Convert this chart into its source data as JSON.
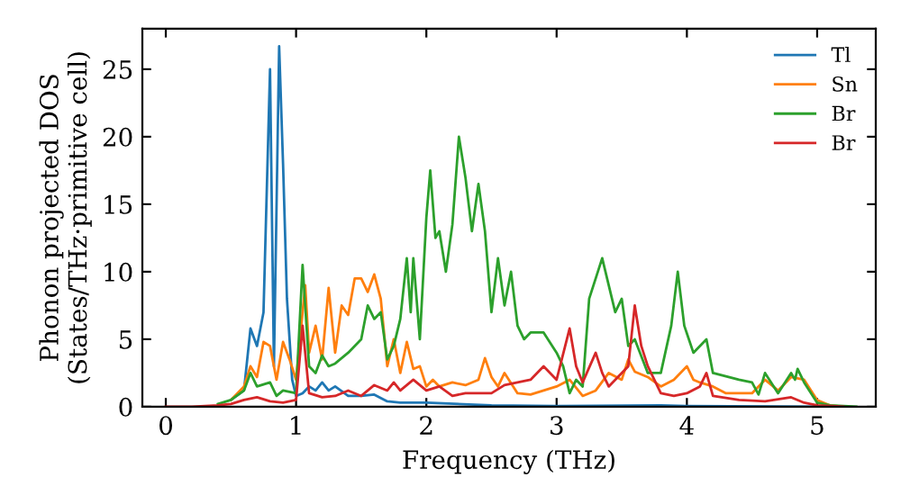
{
  "chart_data": {
    "type": "line",
    "xlabel": "Frequency (THz)",
    "ylabel": "Phonon projected DOS\n(States/THz·primitive cell)",
    "xlim": [
      -0.18,
      5.45
    ],
    "ylim": [
      0,
      28
    ],
    "xticks": [
      0,
      1,
      2,
      3,
      4,
      5
    ],
    "yticks": [
      0,
      5,
      10,
      15,
      20,
      25
    ],
    "grid": false,
    "legend": "top right",
    "marker": "none",
    "line_style": "solid",
    "series": [
      {
        "name": "Tl",
        "color": "#1f77b4",
        "x": [
          0.5,
          0.6,
          0.65,
          0.7,
          0.75,
          0.8,
          0.83,
          0.87,
          0.9,
          0.93,
          0.97,
          1.0,
          1.05,
          1.1,
          1.15,
          1.2,
          1.25,
          1.3,
          1.4,
          1.5,
          1.6,
          1.7,
          1.8,
          2.0,
          2.5,
          3.0,
          3.8,
          4.0,
          5.0
        ],
        "values": [
          0.5,
          1.2,
          5.8,
          4.5,
          7,
          25,
          3,
          26.7,
          18,
          8,
          2,
          0.8,
          1,
          1.5,
          1.2,
          1.8,
          1.2,
          1.5,
          0.8,
          0.8,
          0.9,
          0.4,
          0.3,
          0.3,
          0.1,
          0.05,
          0.1,
          0.05,
          0
        ]
      },
      {
        "name": "Sn",
        "color": "#ff7f0e",
        "x": [
          0.5,
          0.6,
          0.65,
          0.7,
          0.75,
          0.8,
          0.85,
          0.9,
          0.95,
          1.0,
          1.07,
          1.1,
          1.15,
          1.2,
          1.25,
          1.3,
          1.35,
          1.4,
          1.45,
          1.5,
          1.55,
          1.6,
          1.65,
          1.7,
          1.75,
          1.8,
          1.85,
          1.9,
          1.95,
          2.0,
          2.05,
          2.1,
          2.2,
          2.3,
          2.4,
          2.45,
          2.5,
          2.55,
          2.6,
          2.7,
          2.8,
          2.9,
          3.0,
          3.1,
          3.2,
          3.3,
          3.4,
          3.5,
          3.55,
          3.6,
          3.7,
          3.8,
          3.9,
          4.0,
          4.05,
          4.1,
          4.2,
          4.3,
          4.5,
          4.6,
          4.7,
          4.8,
          4.9,
          5.0,
          5.1,
          5.2
        ],
        "values": [
          0.5,
          1.5,
          3,
          2.2,
          4.8,
          4.5,
          2,
          4.8,
          3.5,
          2,
          9,
          4,
          6,
          3.5,
          8.8,
          4,
          7.5,
          6.8,
          9.5,
          9.5,
          8.5,
          9.8,
          8,
          3,
          5,
          2.5,
          4.8,
          2.8,
          3,
          1.5,
          2,
          1.5,
          1.8,
          1.6,
          2,
          3.6,
          2.2,
          1.5,
          2.5,
          1,
          0.9,
          1.2,
          1.5,
          2,
          0.8,
          1.2,
          2.5,
          2,
          3.5,
          2.6,
          2.2,
          1.5,
          2,
          3,
          2,
          1.8,
          1.5,
          1,
          1,
          2,
          1.2,
          2.2,
          2,
          0.5,
          0.1,
          0
        ]
      },
      {
        "name": "Br",
        "color": "#2ca02c",
        "x": [
          0.4,
          0.5,
          0.6,
          0.65,
          0.7,
          0.8,
          0.85,
          0.9,
          1.0,
          1.05,
          1.1,
          1.15,
          1.2,
          1.25,
          1.3,
          1.4,
          1.5,
          1.55,
          1.6,
          1.65,
          1.7,
          1.75,
          1.8,
          1.85,
          1.88,
          1.9,
          1.95,
          2.0,
          2.03,
          2.07,
          2.1,
          2.15,
          2.2,
          2.25,
          2.3,
          2.35,
          2.4,
          2.45,
          2.5,
          2.55,
          2.6,
          2.65,
          2.7,
          2.75,
          2.8,
          2.9,
          3.0,
          3.05,
          3.1,
          3.15,
          3.2,
          3.25,
          3.35,
          3.4,
          3.45,
          3.5,
          3.55,
          3.6,
          3.7,
          3.8,
          3.88,
          3.93,
          3.98,
          4.05,
          4.1,
          4.15,
          4.2,
          4.4,
          4.5,
          4.55,
          4.6,
          4.7,
          4.8,
          4.83,
          4.85,
          4.9,
          5.0,
          5.1,
          5.3
        ],
        "values": [
          0.2,
          0.5,
          1.2,
          2.5,
          1.5,
          1.8,
          0.8,
          1.2,
          1,
          10.5,
          3,
          2.5,
          3.8,
          3,
          3.2,
          4,
          5,
          7.5,
          6.5,
          7,
          3.5,
          4.5,
          6.5,
          11,
          7,
          11,
          5,
          14,
          17.5,
          12.5,
          13,
          10,
          13.5,
          20,
          17,
          13,
          16.5,
          13,
          7,
          11,
          7.5,
          10,
          6,
          5,
          5.5,
          5.5,
          4,
          3,
          1,
          2,
          1.5,
          8,
          11,
          9,
          7,
          8,
          4.5,
          5,
          2.5,
          2.5,
          6,
          10,
          6,
          4,
          4.5,
          5,
          2.5,
          2,
          1.8,
          0.9,
          2.5,
          1,
          2.5,
          2,
          2.8,
          1.8,
          0.3,
          0.1,
          0
        ]
      },
      {
        "name": "Br",
        "color": "#d62728",
        "x": [
          0,
          0.2,
          0.4,
          0.5,
          0.6,
          0.7,
          0.8,
          0.9,
          1.0,
          1.05,
          1.1,
          1.2,
          1.3,
          1.4,
          1.5,
          1.6,
          1.7,
          1.75,
          1.8,
          1.9,
          2.0,
          2.1,
          2.2,
          2.3,
          2.5,
          2.6,
          2.7,
          2.8,
          2.9,
          3.0,
          3.1,
          3.15,
          3.2,
          3.3,
          3.35,
          3.4,
          3.5,
          3.55,
          3.6,
          3.65,
          3.7,
          3.8,
          3.9,
          4.0,
          4.1,
          4.15,
          4.2,
          4.4,
          4.6,
          4.8,
          4.9,
          5.0,
          5.2
        ],
        "values": [
          0,
          0,
          0.1,
          0.2,
          0.5,
          0.7,
          0.4,
          0.3,
          0.5,
          6,
          1,
          0.7,
          0.8,
          1.2,
          0.8,
          1.6,
          1.2,
          1.8,
          1.2,
          2,
          1.2,
          1.5,
          0.8,
          1,
          1,
          1.6,
          1.8,
          2,
          3,
          2,
          5.8,
          3,
          1.8,
          4,
          2.5,
          1.5,
          2.5,
          3,
          7.5,
          4.5,
          3,
          1,
          0.8,
          1,
          1.5,
          2.5,
          0.8,
          0.5,
          0.4,
          0.7,
          0.3,
          0.1,
          0
        ]
      }
    ]
  }
}
